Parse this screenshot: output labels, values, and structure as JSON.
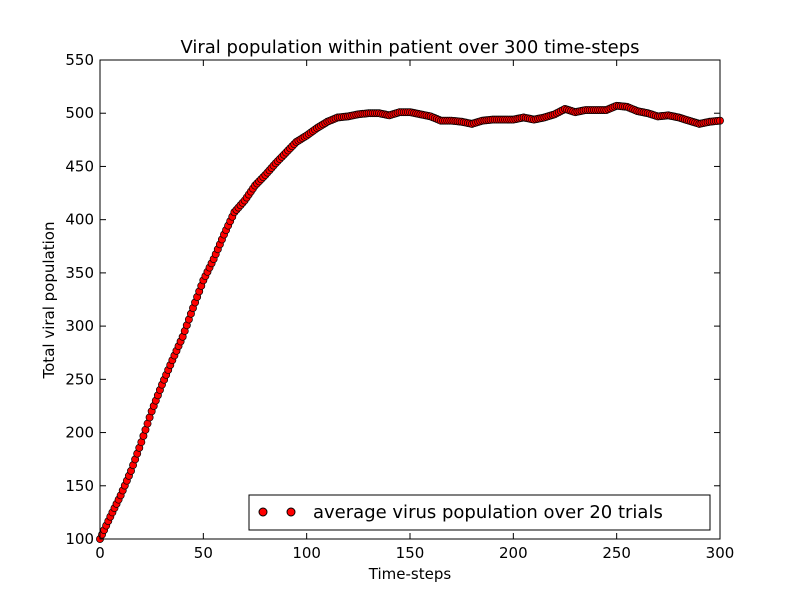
{
  "chart_data": {
    "type": "scatter",
    "title": "Viral population within patient over 300 time-steps",
    "xlabel": "Time-steps",
    "ylabel": "Total viral population",
    "xlim": [
      0,
      300
    ],
    "ylim": [
      100,
      550
    ],
    "xticks": [
      0,
      50,
      100,
      150,
      200,
      250,
      300
    ],
    "yticks": [
      100,
      150,
      200,
      250,
      300,
      350,
      400,
      450,
      500,
      550
    ],
    "grid": false,
    "legend_position": "bottom-right",
    "colors": {
      "marker_fill": "#ff0000",
      "marker_edge": "#000000"
    },
    "series": [
      {
        "name": "average virus population over 20 trials",
        "x": [
          0,
          5,
          10,
          15,
          20,
          25,
          30,
          35,
          40,
          45,
          50,
          55,
          60,
          65,
          70,
          75,
          80,
          85,
          90,
          95,
          100,
          105,
          110,
          115,
          120,
          125,
          130,
          135,
          140,
          145,
          150,
          155,
          160,
          165,
          170,
          175,
          180,
          185,
          190,
          195,
          200,
          205,
          210,
          215,
          220,
          225,
          230,
          235,
          240,
          245,
          250,
          255,
          260,
          265,
          270,
          275,
          280,
          285,
          290,
          295,
          300
        ],
        "y": [
          100,
          121,
          141,
          164,
          191,
          220,
          245,
          268,
          290,
          317,
          343,
          363,
          386,
          407,
          418,
          432,
          442,
          453,
          463,
          473,
          479,
          486,
          492,
          496,
          497,
          499,
          500,
          500,
          498,
          501,
          501,
          499,
          497,
          493,
          493,
          492,
          490,
          493,
          494,
          494,
          494,
          496,
          494,
          496,
          499,
          504,
          501,
          503,
          503,
          503,
          507,
          506,
          502,
          500,
          497,
          498,
          496,
          493,
          490,
          492,
          493
        ]
      }
    ]
  }
}
